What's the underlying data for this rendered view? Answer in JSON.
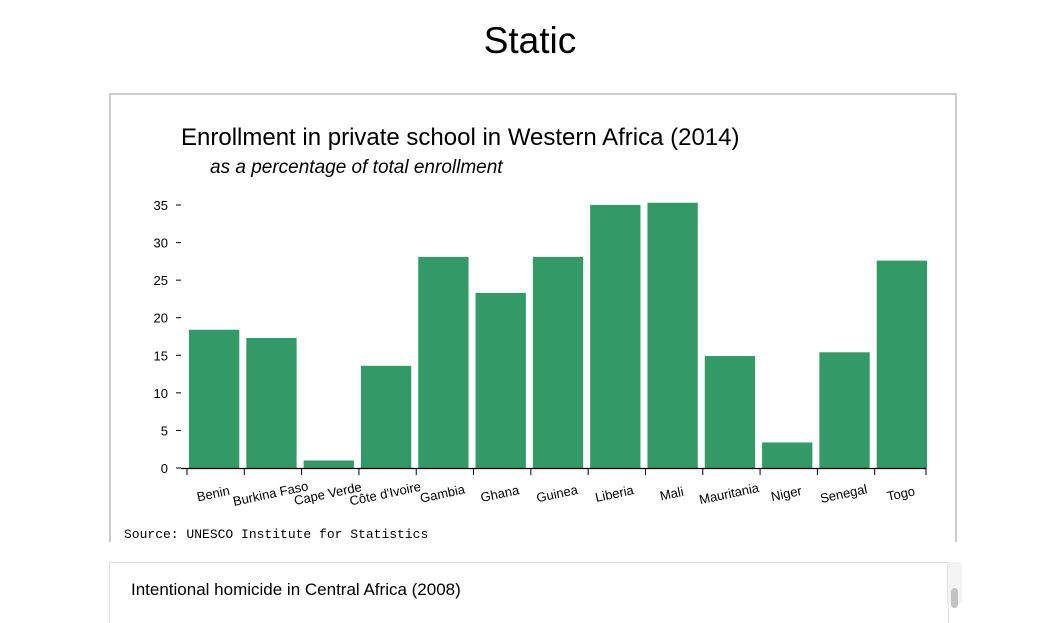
{
  "page": {
    "heading": "Static"
  },
  "chart_data": {
    "type": "bar",
    "title": "Enrollment in private school in Western Africa (2014)",
    "subtitle": "as a percentage of total enrollment",
    "source": "Source: UNESCO Institute for Statistics",
    "categories": [
      "Benin",
      "Burkina Faso",
      "Cape Verde",
      "Côte d'Ivoire",
      "Gambia",
      "Ghana",
      "Guinea",
      "Liberia",
      "Mali",
      "Mauritania",
      "Niger",
      "Senegal",
      "Togo"
    ],
    "values": [
      18.4,
      17.3,
      1.0,
      13.6,
      28.1,
      23.3,
      28.1,
      35.0,
      35.3,
      14.9,
      3.4,
      15.4,
      27.6
    ],
    "ylim": [
      0,
      35
    ],
    "yticks": [
      0,
      5,
      10,
      15,
      20,
      25,
      30,
      35
    ],
    "xlabel": "",
    "ylabel": "",
    "grid": false,
    "bar_color": "#339966"
  },
  "second_chart": {
    "title": "Intentional homicide in Central Africa (2008)"
  }
}
